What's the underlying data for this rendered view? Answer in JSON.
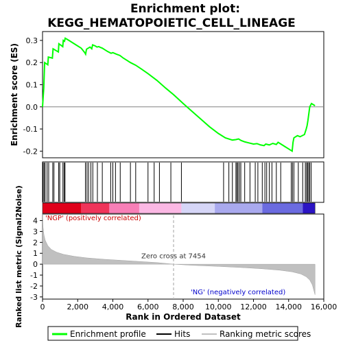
{
  "chart_data": {
    "type": "line",
    "title_line1": "Enrichment plot:",
    "title_line2": "KEGG_HEMATOPOIETIC_CELL_LINEAGE",
    "es_panel": {
      "ylabel": "Enrichment score (ES)",
      "ylim": [
        -0.23,
        0.34
      ],
      "yticks": [
        -0.2,
        -0.1,
        0.0,
        0.1,
        0.2,
        0.3
      ],
      "ytick_labels": [
        "-0.2",
        "-0.1",
        "0.0",
        "0.1",
        "0.2",
        "0.3"
      ],
      "series": [
        {
          "name": "Enrichment profile",
          "color": "#00ff00",
          "x": [
            0,
            70,
            120,
            300,
            330,
            560,
            600,
            900,
            930,
            1150,
            1180,
            1250,
            1290,
            1500,
            1900,
            2200,
            2400,
            2450,
            2500,
            2600,
            2700,
            2800,
            2850,
            3000,
            3100,
            3200,
            3300,
            3400,
            3500,
            3700,
            3900,
            4000,
            4200,
            4400,
            4600,
            4800,
            5000,
            5300,
            5600,
            6000,
            6500,
            7000,
            7454,
            8000,
            8500,
            9000,
            9500,
            10000,
            10400,
            10800,
            11000,
            11150,
            11300,
            11500,
            11700,
            12000,
            12200,
            12400,
            12600,
            12700,
            12900,
            13100,
            13300,
            13400,
            13600,
            13800,
            14000,
            14200,
            14250,
            14300,
            14400,
            14500,
            14650,
            14900,
            15000,
            15050,
            15100,
            15150,
            15200,
            15300,
            15500
          ],
          "y": [
            0.0,
            0.085,
            0.2,
            0.19,
            0.225,
            0.22,
            0.262,
            0.248,
            0.285,
            0.272,
            0.3,
            0.296,
            0.31,
            0.3,
            0.28,
            0.265,
            0.245,
            0.238,
            0.26,
            0.265,
            0.27,
            0.262,
            0.28,
            0.275,
            0.27,
            0.272,
            0.268,
            0.265,
            0.26,
            0.25,
            0.242,
            0.245,
            0.238,
            0.232,
            0.22,
            0.21,
            0.2,
            0.188,
            0.172,
            0.15,
            0.12,
            0.085,
            0.055,
            0.015,
            -0.02,
            -0.055,
            -0.09,
            -0.12,
            -0.14,
            -0.15,
            -0.148,
            -0.145,
            -0.152,
            -0.158,
            -0.162,
            -0.168,
            -0.166,
            -0.172,
            -0.175,
            -0.168,
            -0.172,
            -0.165,
            -0.17,
            -0.16,
            -0.17,
            -0.18,
            -0.19,
            -0.2,
            -0.16,
            -0.14,
            -0.135,
            -0.13,
            -0.135,
            -0.125,
            -0.1,
            -0.085,
            -0.06,
            -0.03,
            0.0,
            0.015,
            0.005
          ]
        }
      ]
    },
    "hits": [
      30,
      90,
      150,
      260,
      350,
      580,
      650,
      920,
      980,
      1160,
      1230,
      1280,
      2440,
      2530,
      2620,
      2750,
      2860,
      3120,
      3400,
      3880,
      4000,
      4150,
      4420,
      5000,
      5300,
      6000,
      6350,
      6650,
      7300,
      7900,
      10300,
      10600,
      10800,
      11000,
      11060,
      11120,
      11200,
      11280,
      11500,
      11800,
      12100,
      12250,
      12500,
      12650,
      12750,
      12900,
      13050,
      13300,
      13550,
      14150,
      14220,
      14300,
      14550,
      14800,
      14950,
      15020,
      15080,
      15140,
      15200,
      15280
    ],
    "rank_panel": {
      "ylabel": "Ranked list metric (Signal2Noise)",
      "ylim": [
        -3.2,
        4.6
      ],
      "yticks": [
        -3,
        -2,
        -1,
        0,
        1,
        2,
        3,
        4
      ],
      "ytick_labels": [
        "-3",
        "-2",
        "-1",
        "0",
        "1",
        "2",
        "3",
        "4"
      ],
      "profile_x": [
        0,
        30,
        80,
        150,
        300,
        500,
        800,
        1200,
        1800,
        2500,
        3500,
        5000,
        6500,
        7454,
        8500,
        10000,
        11500,
        12500,
        13500,
        14200,
        14700,
        15000,
        15200,
        15350,
        15450,
        15500
      ],
      "profile_y": [
        4.6,
        3.4,
        2.7,
        2.2,
        1.7,
        1.35,
        1.1,
        0.9,
        0.72,
        0.58,
        0.45,
        0.3,
        0.15,
        0.0,
        -0.1,
        -0.2,
        -0.32,
        -0.42,
        -0.55,
        -0.7,
        -0.9,
        -1.15,
        -1.45,
        -1.9,
        -2.5,
        -2.8
      ],
      "zero_cross_label": "Zero cross at 7454",
      "zero_cross_x": 7454,
      "pos_label": "'NGP' (positively correlated)",
      "neg_label": "'NG' (negatively correlated)"
    },
    "xlabel": "Rank in Ordered Dataset",
    "xlim": [
      0,
      16000
    ],
    "xticks": [
      0,
      2000,
      4000,
      6000,
      8000,
      10000,
      12000,
      14000,
      16000
    ],
    "xtick_labels": [
      "0",
      "2,000",
      "4,000",
      "6,000",
      "8,000",
      "10,000",
      "12,000",
      "14,000",
      "16,000"
    ],
    "n_genes": 15500,
    "heat_colors": [
      "#e0001a",
      "#f0345a",
      "#f87fb7",
      "#fbb8e4",
      "#d6d6f7",
      "#a9a9ee",
      "#6b6be0",
      "#2b14c4"
    ],
    "heat_stops": [
      0,
      2200,
      3800,
      5500,
      7900,
      9800,
      12500,
      14800,
      15500
    ],
    "legend": [
      {
        "label": "Enrichment profile",
        "color": "#00ff00"
      },
      {
        "label": "Hits",
        "color": "#000000"
      },
      {
        "label": "Ranking metric scores",
        "color": "#c0c0c0"
      }
    ],
    "pos_label_color": "#cc0000",
    "neg_label_color": "#0000cc"
  }
}
